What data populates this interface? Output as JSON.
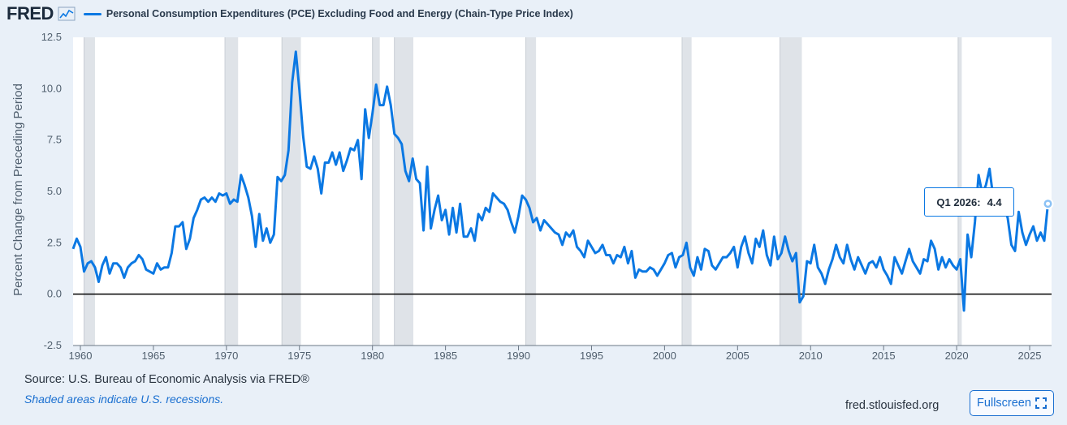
{
  "header": {
    "logo": "FRED",
    "series_title": "Personal Consumption Expenditures (PCE) Excluding Food and Energy (Chain-Type Price Index)"
  },
  "tooltip": {
    "label": "Q1 2026:",
    "value": "4.4"
  },
  "footer": {
    "source": "Source: U.S. Bureau of Economic Analysis via FRED®",
    "note": "Shaded areas indicate U.S. recessions.",
    "site": "fred.stlouisfed.org",
    "fullscreen_label": "Fullscreen"
  },
  "colors": {
    "series": "#0b78e3",
    "recession": "#dfe3e8",
    "background": "#e9f0f8",
    "plot": "#ffffff"
  },
  "chart_data": {
    "type": "line",
    "title": "Personal Consumption Expenditures (PCE) Excluding Food and Energy (Chain-Type Price Index)",
    "ylabel": "Percent Change from Preceding Period",
    "xlabel": "",
    "xlim": [
      1959.5,
      2026.5
    ],
    "ylim": [
      -2.5,
      12.5
    ],
    "yticks": [
      -2.5,
      0.0,
      2.5,
      5.0,
      7.5,
      10.0,
      12.5
    ],
    "ytick_labels": [
      "-2.5",
      "0.0",
      "2.5",
      "5.0",
      "7.5",
      "10.0",
      "12.5"
    ],
    "xticks": [
      1960,
      1965,
      1970,
      1975,
      1980,
      1985,
      1990,
      1995,
      2000,
      2005,
      2010,
      2015,
      2020,
      2025
    ],
    "xtick_labels": [
      "1960",
      "1965",
      "1970",
      "1975",
      "1980",
      "1985",
      "1990",
      "1995",
      "2000",
      "2005",
      "2010",
      "2015",
      "2020",
      "2025"
    ],
    "grid": false,
    "recessions": [
      [
        1960.25,
        1961.0
      ],
      [
        1969.9,
        1970.8
      ],
      [
        1973.8,
        1975.1
      ],
      [
        1980.0,
        1980.5
      ],
      [
        1981.5,
        1982.8
      ],
      [
        1990.5,
        1991.2
      ],
      [
        2001.2,
        2001.85
      ],
      [
        2007.9,
        2009.4
      ],
      [
        2020.1,
        2020.35
      ]
    ],
    "series": [
      {
        "values": [
          [
            1959.5,
            2.2
          ],
          [
            1959.75,
            2.7
          ],
          [
            1960.0,
            2.3
          ],
          [
            1960.25,
            1.1
          ],
          [
            1960.5,
            1.5
          ],
          [
            1960.75,
            1.6
          ],
          [
            1961.0,
            1.3
          ],
          [
            1961.25,
            0.6
          ],
          [
            1961.5,
            1.4
          ],
          [
            1961.75,
            1.8
          ],
          [
            1962.0,
            1.0
          ],
          [
            1962.25,
            1.5
          ],
          [
            1962.5,
            1.5
          ],
          [
            1962.75,
            1.3
          ],
          [
            1963.0,
            0.8
          ],
          [
            1963.25,
            1.3
          ],
          [
            1963.5,
            1.5
          ],
          [
            1963.75,
            1.6
          ],
          [
            1964.0,
            1.9
          ],
          [
            1964.25,
            1.7
          ],
          [
            1964.5,
            1.2
          ],
          [
            1964.75,
            1.1
          ],
          [
            1965.0,
            1.0
          ],
          [
            1965.25,
            1.5
          ],
          [
            1965.5,
            1.2
          ],
          [
            1965.75,
            1.3
          ],
          [
            1966.0,
            1.3
          ],
          [
            1966.25,
            2.0
          ],
          [
            1966.5,
            3.3
          ],
          [
            1966.75,
            3.3
          ],
          [
            1967.0,
            3.5
          ],
          [
            1967.25,
            2.2
          ],
          [
            1967.5,
            2.7
          ],
          [
            1967.75,
            3.7
          ],
          [
            1968.0,
            4.1
          ],
          [
            1968.25,
            4.6
          ],
          [
            1968.5,
            4.7
          ],
          [
            1968.75,
            4.5
          ],
          [
            1969.0,
            4.7
          ],
          [
            1969.25,
            4.5
          ],
          [
            1969.5,
            4.9
          ],
          [
            1969.75,
            4.8
          ],
          [
            1970.0,
            4.9
          ],
          [
            1970.25,
            4.4
          ],
          [
            1970.5,
            4.6
          ],
          [
            1970.75,
            4.5
          ],
          [
            1971.0,
            5.8
          ],
          [
            1971.25,
            5.3
          ],
          [
            1971.5,
            4.7
          ],
          [
            1971.75,
            3.8
          ],
          [
            1972.0,
            2.3
          ],
          [
            1972.25,
            3.9
          ],
          [
            1972.5,
            2.6
          ],
          [
            1972.75,
            3.2
          ],
          [
            1973.0,
            2.5
          ],
          [
            1973.25,
            2.9
          ],
          [
            1973.5,
            5.7
          ],
          [
            1973.75,
            5.5
          ],
          [
            1974.0,
            5.8
          ],
          [
            1974.25,
            7.0
          ],
          [
            1974.5,
            10.3
          ],
          [
            1974.75,
            11.8
          ],
          [
            1975.0,
            9.9
          ],
          [
            1975.25,
            7.7
          ],
          [
            1975.5,
            6.2
          ],
          [
            1975.75,
            6.1
          ],
          [
            1976.0,
            6.7
          ],
          [
            1976.25,
            6.1
          ],
          [
            1976.5,
            4.9
          ],
          [
            1976.75,
            6.4
          ],
          [
            1977.0,
            6.4
          ],
          [
            1977.25,
            6.9
          ],
          [
            1977.5,
            6.3
          ],
          [
            1977.75,
            6.9
          ],
          [
            1978.0,
            6.0
          ],
          [
            1978.25,
            6.5
          ],
          [
            1978.5,
            7.1
          ],
          [
            1978.75,
            7.0
          ],
          [
            1979.0,
            7.5
          ],
          [
            1979.25,
            5.6
          ],
          [
            1979.5,
            9.0
          ],
          [
            1979.75,
            7.6
          ],
          [
            1980.0,
            8.8
          ],
          [
            1980.25,
            10.2
          ],
          [
            1980.5,
            9.2
          ],
          [
            1980.75,
            9.2
          ],
          [
            1981.0,
            10.1
          ],
          [
            1981.25,
            9.2
          ],
          [
            1981.5,
            7.8
          ],
          [
            1981.75,
            7.6
          ],
          [
            1982.0,
            7.3
          ],
          [
            1982.25,
            6.0
          ],
          [
            1982.5,
            5.5
          ],
          [
            1982.75,
            6.6
          ],
          [
            1983.0,
            5.6
          ],
          [
            1983.25,
            5.4
          ],
          [
            1983.5,
            3.1
          ],
          [
            1983.75,
            6.2
          ],
          [
            1984.0,
            3.2
          ],
          [
            1984.25,
            4.1
          ],
          [
            1984.5,
            4.8
          ],
          [
            1984.75,
            3.6
          ],
          [
            1985.0,
            4.1
          ],
          [
            1985.25,
            2.9
          ],
          [
            1985.5,
            4.2
          ],
          [
            1985.75,
            3.0
          ],
          [
            1986.0,
            4.4
          ],
          [
            1986.25,
            2.8
          ],
          [
            1986.5,
            2.8
          ],
          [
            1986.75,
            3.2
          ],
          [
            1987.0,
            2.6
          ],
          [
            1987.25,
            3.9
          ],
          [
            1987.5,
            3.6
          ],
          [
            1987.75,
            4.2
          ],
          [
            1988.0,
            4.0
          ],
          [
            1988.25,
            4.9
          ],
          [
            1988.5,
            4.7
          ],
          [
            1988.75,
            4.5
          ],
          [
            1989.0,
            4.4
          ],
          [
            1989.25,
            4.1
          ],
          [
            1989.5,
            3.5
          ],
          [
            1989.75,
            3.0
          ],
          [
            1990.0,
            3.8
          ],
          [
            1990.25,
            4.8
          ],
          [
            1990.5,
            4.6
          ],
          [
            1990.75,
            4.2
          ],
          [
            1991.0,
            3.5
          ],
          [
            1991.25,
            3.7
          ],
          [
            1991.5,
            3.1
          ],
          [
            1991.75,
            3.6
          ],
          [
            1992.0,
            3.4
          ],
          [
            1992.25,
            3.2
          ],
          [
            1992.5,
            3.0
          ],
          [
            1992.75,
            2.9
          ],
          [
            1993.0,
            2.4
          ],
          [
            1993.25,
            3.0
          ],
          [
            1993.5,
            2.8
          ],
          [
            1993.75,
            3.1
          ],
          [
            1994.0,
            2.3
          ],
          [
            1994.25,
            2.1
          ],
          [
            1994.5,
            1.8
          ],
          [
            1994.75,
            2.6
          ],
          [
            1995.0,
            2.3
          ],
          [
            1995.25,
            2.0
          ],
          [
            1995.5,
            2.1
          ],
          [
            1995.75,
            2.4
          ],
          [
            1996.0,
            1.9
          ],
          [
            1996.25,
            1.9
          ],
          [
            1996.5,
            1.5
          ],
          [
            1996.75,
            1.9
          ],
          [
            1997.0,
            1.8
          ],
          [
            1997.25,
            2.3
          ],
          [
            1997.5,
            1.5
          ],
          [
            1997.75,
            2.1
          ],
          [
            1998.0,
            0.8
          ],
          [
            1998.25,
            1.2
          ],
          [
            1998.5,
            1.1
          ],
          [
            1998.75,
            1.1
          ],
          [
            1999.0,
            1.3
          ],
          [
            1999.25,
            1.2
          ],
          [
            1999.5,
            0.9
          ],
          [
            1999.75,
            1.2
          ],
          [
            2000.0,
            1.5
          ],
          [
            2000.25,
            1.9
          ],
          [
            2000.5,
            2.0
          ],
          [
            2000.75,
            1.3
          ],
          [
            2001.0,
            1.8
          ],
          [
            2001.25,
            1.9
          ],
          [
            2001.5,
            2.5
          ],
          [
            2001.75,
            1.3
          ],
          [
            2002.0,
            0.9
          ],
          [
            2002.25,
            1.8
          ],
          [
            2002.5,
            1.2
          ],
          [
            2002.75,
            2.2
          ],
          [
            2003.0,
            2.1
          ],
          [
            2003.25,
            1.4
          ],
          [
            2003.5,
            1.2
          ],
          [
            2003.75,
            1.5
          ],
          [
            2004.0,
            1.8
          ],
          [
            2004.25,
            1.8
          ],
          [
            2004.5,
            2.0
          ],
          [
            2004.75,
            2.3
          ],
          [
            2005.0,
            1.3
          ],
          [
            2005.25,
            2.3
          ],
          [
            2005.5,
            2.8
          ],
          [
            2005.75,
            2.0
          ],
          [
            2006.0,
            1.5
          ],
          [
            2006.25,
            2.7
          ],
          [
            2006.5,
            2.3
          ],
          [
            2006.75,
            3.1
          ],
          [
            2007.0,
            1.9
          ],
          [
            2007.25,
            1.4
          ],
          [
            2007.5,
            2.8
          ],
          [
            2007.75,
            1.7
          ],
          [
            2008.0,
            2.0
          ],
          [
            2008.25,
            2.8
          ],
          [
            2008.5,
            2.1
          ],
          [
            2008.75,
            1.6
          ],
          [
            2009.0,
            2.0
          ],
          [
            2009.25,
            -0.4
          ],
          [
            2009.5,
            -0.1
          ],
          [
            2009.75,
            1.6
          ],
          [
            2010.0,
            1.5
          ],
          [
            2010.25,
            2.4
          ],
          [
            2010.5,
            1.3
          ],
          [
            2010.75,
            1.0
          ],
          [
            2011.0,
            0.5
          ],
          [
            2011.25,
            1.2
          ],
          [
            2011.5,
            1.7
          ],
          [
            2011.75,
            2.4
          ],
          [
            2012.0,
            1.8
          ],
          [
            2012.25,
            1.5
          ],
          [
            2012.5,
            2.4
          ],
          [
            2012.75,
            1.7
          ],
          [
            2013.0,
            1.2
          ],
          [
            2013.25,
            1.8
          ],
          [
            2013.5,
            1.4
          ],
          [
            2013.75,
            1.0
          ],
          [
            2014.0,
            1.5
          ],
          [
            2014.25,
            1.6
          ],
          [
            2014.5,
            1.3
          ],
          [
            2014.75,
            1.8
          ],
          [
            2015.0,
            1.2
          ],
          [
            2015.25,
            0.9
          ],
          [
            2015.5,
            0.5
          ],
          [
            2015.75,
            1.8
          ],
          [
            2016.0,
            1.4
          ],
          [
            2016.25,
            1.0
          ],
          [
            2016.5,
            1.6
          ],
          [
            2016.75,
            2.2
          ],
          [
            2017.0,
            1.6
          ],
          [
            2017.25,
            1.3
          ],
          [
            2017.5,
            1.0
          ],
          [
            2017.75,
            1.7
          ],
          [
            2018.0,
            1.6
          ],
          [
            2018.25,
            2.6
          ],
          [
            2018.5,
            2.2
          ],
          [
            2018.75,
            1.2
          ],
          [
            2019.0,
            1.8
          ],
          [
            2019.25,
            1.3
          ],
          [
            2019.5,
            1.7
          ],
          [
            2019.75,
            1.4
          ],
          [
            2020.0,
            1.2
          ],
          [
            2020.25,
            1.7
          ],
          [
            2020.5,
            -0.8
          ],
          [
            2020.75,
            2.9
          ],
          [
            2021.0,
            1.8
          ],
          [
            2021.25,
            3.5
          ],
          [
            2021.5,
            5.8
          ],
          [
            2021.75,
            4.9
          ],
          [
            2022.0,
            5.3
          ],
          [
            2022.25,
            6.1
          ],
          [
            2022.5,
            4.7
          ],
          [
            2022.75,
            5.0
          ],
          [
            2023.0,
            4.8
          ],
          [
            2023.25,
            4.3
          ],
          [
            2023.5,
            3.7
          ],
          [
            2023.75,
            2.4
          ],
          [
            2024.0,
            2.1
          ],
          [
            2024.25,
            4.0
          ],
          [
            2024.5,
            3.0
          ],
          [
            2024.75,
            2.4
          ],
          [
            2025.0,
            2.9
          ],
          [
            2025.25,
            3.3
          ],
          [
            2025.5,
            2.6
          ],
          [
            2025.75,
            3.0
          ],
          [
            2026.0,
            2.6
          ],
          [
            2026.25,
            4.4
          ]
        ]
      }
    ],
    "highlight": {
      "x": 2026.25,
      "y": 4.4
    }
  }
}
